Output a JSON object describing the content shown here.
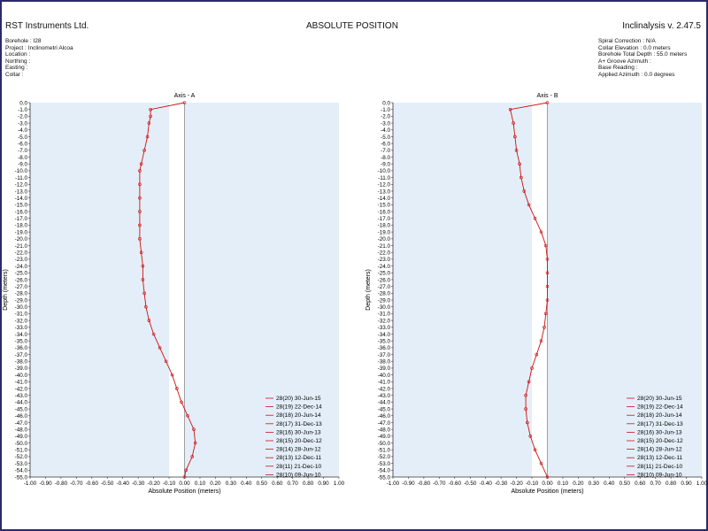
{
  "header": {
    "company": "RST Instruments Ltd.",
    "title": "ABSOLUTE POSITION",
    "software": "Inclinalysis v. 2.47.5"
  },
  "meta_left": [
    "Borehole : I28",
    "Project : Inclinometri Alcoa",
    "Location :",
    "Northing :",
    "Easting :",
    "Collar :"
  ],
  "meta_right": [
    "Spiral Correction : N/A",
    "Collar Elevation : 0.0 meters",
    "Borehole Total Depth : 55.0 meters",
    "A+ Groove Azimuth :",
    "Base Reading :",
    "Applied Azimuth : 0.0 degrees"
  ],
  "legend": [
    "28(20) 30-Jun-15",
    "28(19) 22-Dec-14",
    "28(18) 20-Jun-14",
    "28(17) 31-Dec-13",
    "28(16) 30-Jun-13",
    "28(15) 20-Dec-12",
    "28(14) 28-Jun-12",
    "28(13) 12-Dec-11",
    "28(11) 21-Dec-10",
    "28(10) 09-Jun-10"
  ],
  "colors": {
    "frame": "#2a2a6a",
    "band": "#e4eef8",
    "series": "#cc1111",
    "axis": "#333333"
  },
  "chart_data": [
    {
      "type": "line",
      "title": "Axis - A",
      "xlabel": "Absolute Position (meters)",
      "ylabel": "Depth (meters)",
      "xlim": [
        -1.0,
        1.0
      ],
      "ylim": [
        0.0,
        -55.0
      ],
      "x_ticks": [
        "-1.00",
        "-0.90",
        "-0.80",
        "-0.70",
        "-0.60",
        "-0.50",
        "-0.40",
        "-0.30",
        "-0.20",
        "-0.10",
        "0.00",
        "0.10",
        "0.20",
        "0.30",
        "0.40",
        "0.50",
        "0.60",
        "0.70",
        "0.80",
        "0.90",
        "1.00"
      ],
      "y_ticks": [
        "0.0",
        "-1.0",
        "-2.0",
        "-3.0",
        "-4.0",
        "-5.0",
        "-6.0",
        "-7.0",
        "-8.0",
        "-9.0",
        "-10.0",
        "-11.0",
        "-12.0",
        "-13.0",
        "-14.0",
        "-15.0",
        "-16.0",
        "-17.0",
        "-18.0",
        "-19.0",
        "-20.0",
        "-21.0",
        "-22.0",
        "-23.0",
        "-24.0",
        "-25.0",
        "-26.0",
        "-27.0",
        "-28.0",
        "-29.0",
        "-30.0",
        "-31.0",
        "-32.0",
        "-33.0",
        "-34.0",
        "-35.0",
        "-36.0",
        "-37.0",
        "-38.0",
        "-39.0",
        "-40.0",
        "-41.0",
        "-42.0",
        "-43.0",
        "-44.0",
        "-45.0",
        "-46.0",
        "-47.0",
        "-48.0",
        "-49.0",
        "-50.0",
        "-51.0",
        "-52.0",
        "-53.0",
        "-54.0",
        "-55.0"
      ],
      "profile": {
        "depth": [
          0,
          -1,
          -2,
          -3,
          -5,
          -7,
          -9,
          -10,
          -12,
          -14,
          -16,
          -18,
          -20,
          -22,
          -24,
          -26,
          -28,
          -30,
          -32,
          -34,
          -36,
          -38,
          -40,
          -42,
          -44,
          -46,
          -48,
          -50,
          -52,
          -54,
          -55
        ],
        "position": [
          0.0,
          -0.22,
          -0.22,
          -0.23,
          -0.24,
          -0.26,
          -0.28,
          -0.29,
          -0.29,
          -0.29,
          -0.29,
          -0.29,
          -0.29,
          -0.28,
          -0.27,
          -0.27,
          -0.26,
          -0.25,
          -0.23,
          -0.2,
          -0.16,
          -0.12,
          -0.08,
          -0.05,
          -0.02,
          0.02,
          0.06,
          0.07,
          0.05,
          0.01,
          0.0
        ]
      }
    },
    {
      "type": "line",
      "title": "Axis - B",
      "xlabel": "Absolute Position (meters)",
      "ylabel": "Depth (meters)",
      "xlim": [
        -1.0,
        1.0
      ],
      "ylim": [
        0.0,
        -55.0
      ],
      "x_ticks": [
        "-1.00",
        "-0.90",
        "-0.80",
        "-0.70",
        "-0.60",
        "-0.50",
        "-0.40",
        "-0.30",
        "-0.20",
        "-0.10",
        "0.00",
        "0.10",
        "0.20",
        "0.30",
        "0.40",
        "0.50",
        "0.60",
        "0.70",
        "0.80",
        "0.90",
        "1.00"
      ],
      "y_ticks": [
        "0.0",
        "-1.0",
        "-2.0",
        "-3.0",
        "-4.0",
        "-5.0",
        "-6.0",
        "-7.0",
        "-8.0",
        "-9.0",
        "-10.0",
        "-11.0",
        "-12.0",
        "-13.0",
        "-14.0",
        "-15.0",
        "-16.0",
        "-17.0",
        "-18.0",
        "-19.0",
        "-20.0",
        "-21.0",
        "-22.0",
        "-23.0",
        "-24.0",
        "-25.0",
        "-26.0",
        "-27.0",
        "-28.0",
        "-29.0",
        "-30.0",
        "-31.0",
        "-32.0",
        "-33.0",
        "-34.0",
        "-35.0",
        "-36.0",
        "-37.0",
        "-38.0",
        "-39.0",
        "-40.0",
        "-41.0",
        "-42.0",
        "-43.0",
        "-44.0",
        "-45.0",
        "-46.0",
        "-47.0",
        "-48.0",
        "-49.0",
        "-50.0",
        "-51.0",
        "-52.0",
        "-53.0",
        "-54.0",
        "-55.0"
      ],
      "profile": {
        "depth": [
          0,
          -1,
          -3,
          -5,
          -7,
          -9,
          -11,
          -13,
          -15,
          -17,
          -19,
          -21,
          -23,
          -25,
          -27,
          -29,
          -31,
          -33,
          -35,
          -37,
          -39,
          -41,
          -43,
          -45,
          -47,
          -49,
          -51,
          -53,
          -55
        ],
        "position": [
          0.0,
          -0.24,
          -0.22,
          -0.21,
          -0.2,
          -0.18,
          -0.17,
          -0.15,
          -0.12,
          -0.08,
          -0.04,
          -0.01,
          0.0,
          0.0,
          0.0,
          0.0,
          -0.01,
          -0.02,
          -0.04,
          -0.07,
          -0.1,
          -0.12,
          -0.14,
          -0.14,
          -0.13,
          -0.11,
          -0.08,
          -0.04,
          0.0
        ]
      }
    }
  ]
}
